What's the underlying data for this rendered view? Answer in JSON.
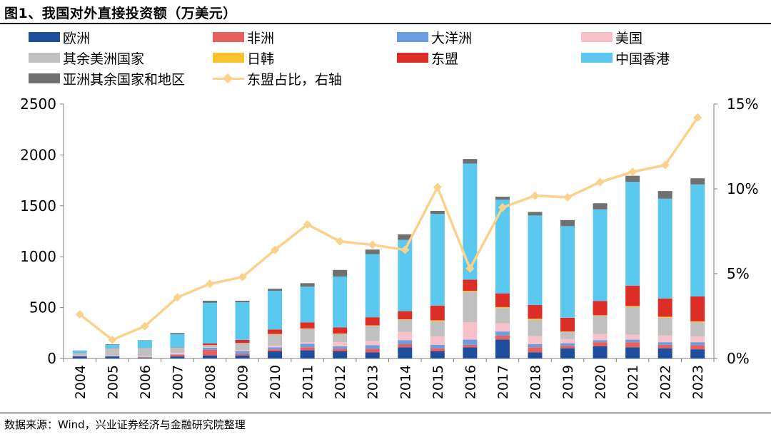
{
  "header": {
    "title": "图1、我国对外直接投资额（万美元）"
  },
  "footer": {
    "source": "数据来源：Wind，兴业证券经济与金融研究院整理"
  },
  "colors": {
    "欧洲": "#1F4E9C",
    "非洲": "#E8605E",
    "大洋洲": "#6A9EE0",
    "美国": "#F8C1C9",
    "其余美洲国家": "#C0C0C0",
    "日韩": "#F9C22E",
    "东盟": "#DC2E26",
    "中国香港": "#5BC8F0",
    "亚洲其余国家和地区": "#707070",
    "东盟占比，右轴": "#FAD28C"
  },
  "chart_data": {
    "type": "bar",
    "stacked": true,
    "categories": [
      "2004",
      "2005",
      "2006",
      "2007",
      "2008",
      "2009",
      "2010",
      "2011",
      "2012",
      "2013",
      "2014",
      "2015",
      "2016",
      "2017",
      "2018",
      "2019",
      "2020",
      "2021",
      "2022",
      "2023"
    ],
    "y_ticks": [
      "0",
      "500",
      "1000",
      "1500",
      "2000",
      "2500"
    ],
    "y2_ticks": [
      "0%",
      "5%",
      "10%",
      "15%"
    ],
    "ylim": [
      0,
      2500
    ],
    "y2lim": [
      0,
      15
    ],
    "legend_position": "top",
    "series": [
      {
        "name": "欧洲",
        "values": [
          20,
          20,
          6,
          20,
          30,
          30,
          70,
          80,
          70,
          60,
          110,
          70,
          110,
          185,
          60,
          100,
          120,
          110,
          100,
          90
        ]
      },
      {
        "name": "非洲",
        "values": [
          3,
          3,
          5,
          15,
          55,
          15,
          20,
          30,
          25,
          35,
          30,
          30,
          25,
          40,
          50,
          25,
          40,
          50,
          35,
          40
        ]
      },
      {
        "name": "大洋洲",
        "values": [
          5,
          3,
          3,
          5,
          20,
          25,
          20,
          35,
          25,
          35,
          40,
          35,
          50,
          40,
          30,
          25,
          20,
          25,
          25,
          30
        ]
      },
      {
        "name": "美国",
        "values": [
          7,
          5,
          5,
          15,
          5,
          10,
          15,
          15,
          40,
          40,
          80,
          80,
          170,
          80,
          80,
          40,
          60,
          50,
          65,
          55
        ]
      },
      {
        "name": "其余美洲国家",
        "values": [
          12,
          65,
          81,
          50,
          20,
          70,
          110,
          130,
          80,
          150,
          120,
          150,
          300,
          150,
          160,
          70,
          180,
          270,
          175,
          140
        ]
      },
      {
        "name": "日韩",
        "values": [
          1,
          1,
          1,
          1,
          2,
          2,
          5,
          5,
          5,
          5,
          5,
          10,
          10,
          10,
          10,
          5,
          5,
          10,
          10,
          10
        ]
      },
      {
        "name": "东盟",
        "values": [
          2,
          2,
          1,
          2,
          15,
          30,
          45,
          60,
          60,
          80,
          80,
          145,
          110,
          135,
          135,
          135,
          140,
          200,
          180,
          245
        ]
      },
      {
        "name": "中国香港",
        "values": [
          25,
          35,
          75,
          130,
          400,
          370,
          380,
          350,
          500,
          620,
          700,
          900,
          1140,
          920,
          880,
          900,
          900,
          1020,
          980,
          1100
        ]
      },
      {
        "name": "亚洲其余国家和地区",
        "values": [
          3,
          5,
          3,
          12,
          20,
          15,
          20,
          35,
          65,
          45,
          55,
          30,
          45,
          30,
          35,
          60,
          60,
          60,
          75,
          60
        ]
      },
      {
        "name": "东盟占比，右轴",
        "axis": "right",
        "type": "line",
        "values": [
          2.6,
          1.1,
          1.9,
          3.6,
          4.4,
          4.8,
          6.4,
          7.9,
          6.9,
          6.7,
          6.4,
          10.1,
          5.3,
          8.9,
          9.6,
          9.5,
          10.4,
          11.0,
          11.4,
          14.2
        ]
      }
    ]
  }
}
